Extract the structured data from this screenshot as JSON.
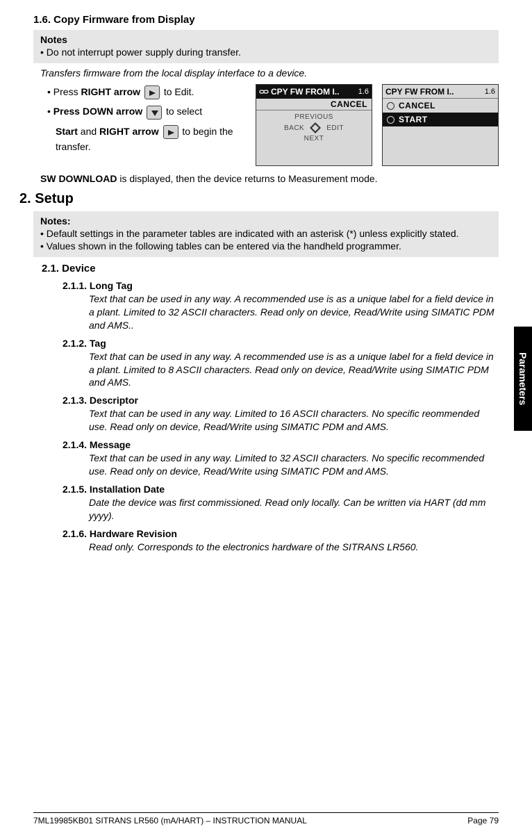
{
  "section_1_6": {
    "title": "1.6.  Copy Firmware from Display",
    "notes_title": "Notes",
    "notes": [
      "Do not interrupt power supply during transfer."
    ],
    "intro_italic": "Transfers firmware from the local display interface to a device.",
    "instr": {
      "line1_pre": "Press ",
      "line1_bold": "RIGHT arrow",
      "line1_post": " to Edit.",
      "line2_bold1": "Press DOWN arrow",
      "line2_mid": " to select ",
      "line3_bold_start": "Start",
      "line3_mid": " and ",
      "line3_bold2": "RIGHT arrow",
      "line3_post": " to begin the transfer."
    },
    "lcd1": {
      "top": "CPY FW FROM I..",
      "num": "1.6",
      "cancel": "CANCEL",
      "previous": "PREVIOUS",
      "back": "BACK",
      "edit": "EDIT",
      "next": "NEXT"
    },
    "lcd2": {
      "top": "CPY FW FROM I..",
      "num": "1.6",
      "cancel": "CANCEL",
      "start": "START"
    },
    "sw_line_bold": "SW DOWNLOAD",
    "sw_line_rest": " is displayed, then the device returns to Measurement mode."
  },
  "section_2": {
    "title": "2. Setup",
    "notes_title": "Notes:",
    "notes": [
      "Default settings in the parameter tables are indicated with an asterisk (*) unless explicitly stated.",
      "Values shown in the following tables can be entered via the handheld programmer."
    ],
    "sub_2_1": "2.1.  Device",
    "params": [
      {
        "num": "2.1.1.",
        "title": "Long Tag",
        "body": "Text that can be used in any way. A recommended use is as a unique label for a field device in a plant. Limited to 32 ASCII characters. Read only on device, Read/Write using SIMATIC PDM and AMS.."
      },
      {
        "num": "2.1.2.",
        "title": "Tag",
        "body": "Text that can be used in any way. A recommended use is as a unique label for a field device in a plant. Limited to 8 ASCII characters. Read only on device, Read/Write using SIMATIC PDM and AMS."
      },
      {
        "num": "2.1.3.",
        "title": "Descriptor",
        "body": "Text that can be used in any way. Limited to 16 ASCII characters. No specific reommended use. Read only on device, Read/Write using SIMATIC PDM and AMS."
      },
      {
        "num": "2.1.4.",
        "title": "Message",
        "body": "Text that can be used in any way. Limited to 32 ASCII characters. No specific recommended use. Read only on device, Read/Write using SIMATIC PDM and AMS."
      },
      {
        "num": "2.1.5.",
        "title": "Installation Date",
        "body": "Date the device was first commissioned. Read only locally. Can be written via HART (dd mm yyyy)."
      },
      {
        "num": "2.1.6.",
        "title": "Hardware Revision",
        "body": "Read only. Corresponds to the electronics hardware of the SITRANS LR560."
      }
    ]
  },
  "side_tab": "Parameters",
  "footer": {
    "left": "7ML19985KB01    SITRANS LR560 (mA/HART) – INSTRUCTION MANUAL",
    "right": "Page 79"
  },
  "colors": {
    "note_bg": "#e6e6e6",
    "lcd_bg": "#d8d8d8",
    "black": "#111111"
  }
}
